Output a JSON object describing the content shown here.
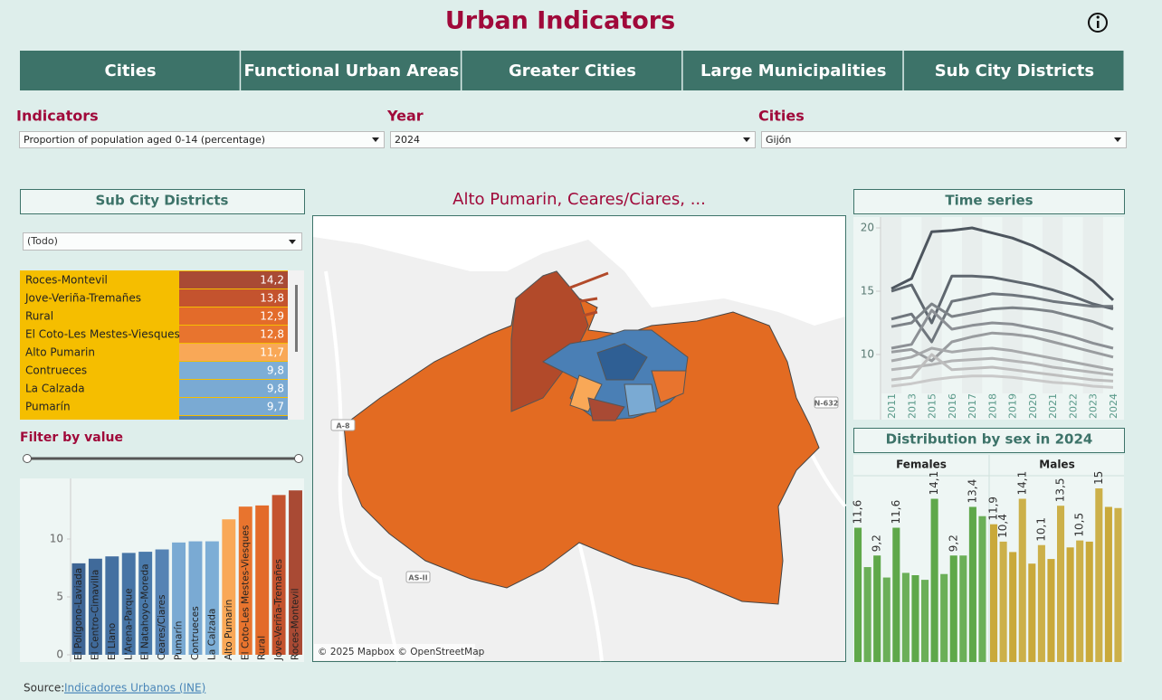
{
  "header": {
    "title": "Urban Indicators"
  },
  "tabs": [
    "Cities",
    "Functional Urban Areas",
    "Greater Cities",
    "Large Municipalities",
    "Sub City Districts"
  ],
  "filters": [
    {
      "label": "Indicators",
      "value": "Proportion of population aged 0-14 (percentage)"
    },
    {
      "label": "Year",
      "value": "2024"
    },
    {
      "label": "Cities",
      "value": "Gijón"
    }
  ],
  "districts_panel": {
    "title": "Sub City Districts",
    "dropdown": "(Todo)",
    "table": {
      "rows": [
        [
          "Roces-Montevil",
          "14,2"
        ],
        [
          "Jove-Veriña-Tremañes",
          "13,8"
        ],
        [
          "Rural",
          "12,9"
        ],
        [
          "El Coto-Les Mestes-Viesques",
          "12,8"
        ],
        [
          "Alto Pumarin",
          "11,7"
        ],
        [
          "Contrueces",
          "9,8"
        ],
        [
          "La Calzada",
          "9,8"
        ],
        [
          "Pumarín",
          "9,7"
        ]
      ]
    },
    "filter_label": "Filter by value"
  },
  "map": {
    "title": "Alto Pumarin, Ceares/Ciares, ...",
    "attribution": "© 2025 Mapbox © OpenStreetMap",
    "road_labels": [
      "A-8",
      "N-632",
      "AS-II"
    ]
  },
  "chart_data": [
    {
      "type": "bar",
      "categories": [
        "El Polígono-Laviada",
        "El Centro-Cimavilla",
        "El Llano",
        "L'Arena-Parque",
        "El Natahoyo-Moreda",
        "Ceares/Ciares",
        "Pumarín",
        "Contrueces",
        "La Calzada",
        "Alto Pumarin",
        "El Coto-Les Mestes-Viesques",
        "Rural",
        "Jove-Veriña-Tremañes",
        "Roces-Montevil"
      ],
      "values": [
        7.9,
        8.3,
        8.5,
        8.8,
        8.9,
        9.1,
        9.7,
        9.8,
        9.8,
        11.7,
        12.8,
        12.9,
        13.8,
        14.2
      ],
      "colors": [
        "#3e6594",
        "#406a9a",
        "#4470a1",
        "#4775a6",
        "#4a7aab",
        "#5683b4",
        "#7aaad3",
        "#7aaad3",
        "#7daed6",
        "#f9a857",
        "#e8742e",
        "#e36b2a",
        "#c4532e",
        "#a94a34"
      ],
      "ylim": [
        0,
        15
      ],
      "yticks": [
        0,
        5,
        10
      ]
    },
    {
      "type": "line",
      "title": "Time series",
      "categories": [
        "2011",
        "2013",
        "2015",
        "2016",
        "2017",
        "2018",
        "2019",
        "2020",
        "2021",
        "2022",
        "2023",
        "2024"
      ],
      "ylim": [
        7,
        21
      ],
      "yticks": [
        10,
        15,
        20
      ],
      "series": [
        {
          "color": "#4d555e",
          "values": [
            15.2,
            16.0,
            19.7,
            19.8,
            20.0,
            19.6,
            19.2,
            18.6,
            17.8,
            16.9,
            15.8,
            14.3
          ]
        },
        {
          "color": "#5f676f",
          "values": [
            15.0,
            15.5,
            12.5,
            16.2,
            16.2,
            16.1,
            15.8,
            15.5,
            15.1,
            14.6,
            14.0,
            13.6
          ]
        },
        {
          "color": "#6f767d",
          "values": [
            12.8,
            13.2,
            11.0,
            14.2,
            14.5,
            14.8,
            14.7,
            14.5,
            14.2,
            14.0,
            13.8,
            13.8
          ]
        },
        {
          "color": "#7d8388",
          "values": [
            12.2,
            12.5,
            14.0,
            13.0,
            13.3,
            13.6,
            13.7,
            13.6,
            13.4,
            13.0,
            12.6,
            12.0
          ]
        },
        {
          "color": "#8c9095",
          "values": [
            10.5,
            10.8,
            13.5,
            12.0,
            12.3,
            12.5,
            12.4,
            12.1,
            11.8,
            11.4,
            10.9,
            10.5
          ]
        },
        {
          "color": "#999c9f",
          "values": [
            10.2,
            10.4,
            9.5,
            11.0,
            11.4,
            11.7,
            11.6,
            11.4,
            11.0,
            10.6,
            10.2,
            9.8
          ]
        },
        {
          "color": "#a7a9ab",
          "values": [
            9.5,
            9.8,
            10.5,
            10.2,
            10.4,
            10.5,
            10.3,
            10.0,
            9.7,
            9.4,
            9.1,
            8.8
          ]
        },
        {
          "color": "#b3b4b5",
          "values": [
            8.8,
            9.0,
            9.2,
            9.5,
            9.6,
            9.7,
            9.5,
            9.3,
            9.0,
            8.8,
            8.6,
            8.4
          ]
        },
        {
          "color": "#bebebe",
          "values": [
            8.0,
            8.2,
            10.0,
            8.8,
            8.9,
            9.0,
            8.8,
            8.6,
            8.4,
            8.2,
            8.0,
            7.9
          ]
        },
        {
          "color": "#c9c9c9",
          "values": [
            7.5,
            7.7,
            8.0,
            8.2,
            8.3,
            8.3,
            8.2,
            8.0,
            7.8,
            7.7,
            7.5,
            7.4
          ]
        }
      ]
    },
    {
      "type": "bar",
      "title": "Distribution by sex in 2024",
      "series": [
        {
          "name": "Females",
          "color": "#5fa84a",
          "values": [
            11.6,
            8.2,
            9.2,
            7.3,
            11.6,
            7.7,
            7.5,
            7.1,
            14.1,
            7.6,
            9.2,
            9.2,
            13.4,
            12.6
          ],
          "value_labels": [
            "11,6",
            null,
            "9,2",
            null,
            "11,6",
            null,
            null,
            null,
            "14,1",
            null,
            "9,2",
            null,
            "13,4",
            null
          ]
        },
        {
          "name": "Males",
          "color": "#c9a93a",
          "values": [
            11.9,
            10.4,
            9.5,
            14.1,
            8.5,
            10.1,
            8.9,
            13.5,
            9.9,
            10.5,
            10.4,
            15,
            13.4,
            13.3
          ],
          "value_labels": [
            "11,9",
            "10,4",
            null,
            "14,1",
            null,
            "10,1",
            null,
            "13,5",
            null,
            "10,5",
            null,
            "15",
            null,
            null
          ]
        }
      ]
    }
  ],
  "footer": {
    "source_label": "Source:",
    "link": "Indicadores Urbanos (INE)"
  }
}
